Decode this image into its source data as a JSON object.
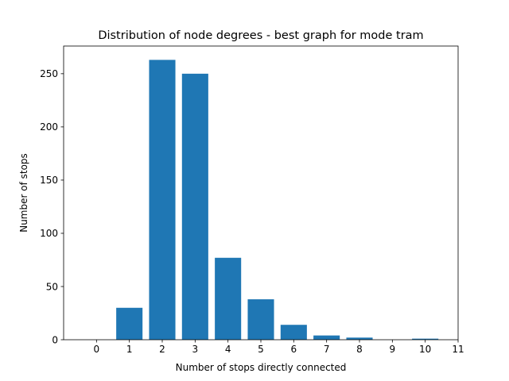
{
  "chart_data": {
    "type": "bar",
    "title": "Distribution of node degrees - best graph for mode tram",
    "xlabel": "Number of stops directly connected",
    "ylabel": "Number of stops",
    "x_ticks": [
      0,
      1,
      2,
      3,
      4,
      5,
      6,
      7,
      8,
      9,
      10,
      11
    ],
    "y_ticks": [
      0,
      50,
      100,
      150,
      200,
      250
    ],
    "xlim": [
      -1,
      11
    ],
    "ylim": [
      0,
      276
    ],
    "bar_color": "#1f77b4",
    "grid": false,
    "categories": [
      0,
      1,
      2,
      3,
      4,
      5,
      6,
      7,
      8,
      9,
      10
    ],
    "values": [
      0,
      30,
      263,
      250,
      77,
      38,
      14,
      4,
      2,
      0,
      1
    ]
  }
}
